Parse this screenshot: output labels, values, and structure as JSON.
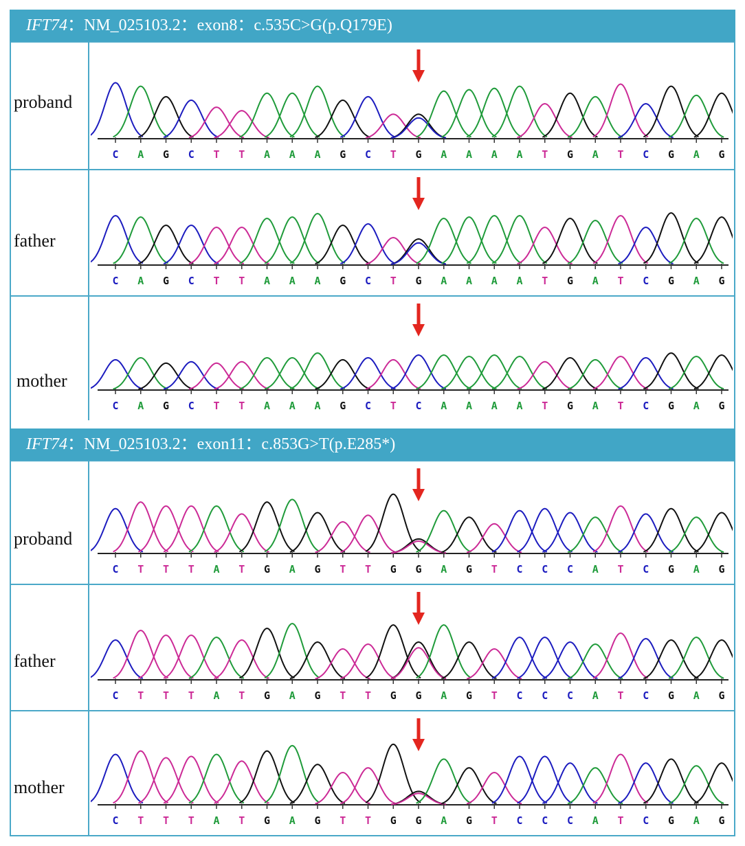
{
  "colors": {
    "A": "#1f9b3a",
    "C": "#1c1cbf",
    "G": "#111111",
    "T": "#cc2a96",
    "arrow": "#e3261f",
    "header": "#41a6c6",
    "border": "#4aa8c8"
  },
  "panels": [
    {
      "gene": "IFT74",
      "rest": "：NM_025103.2：exon8：c.535C>G(p.Q179E)",
      "rows": [
        {
          "label": "proband",
          "seq": [
            "C",
            "A",
            "G",
            "C",
            "T",
            "T",
            "A",
            "A",
            "A",
            "G",
            "C",
            "T",
            "G",
            "A",
            "A",
            "A",
            "A",
            "T",
            "G",
            "A",
            "T",
            "C",
            "G",
            "A",
            "G"
          ],
          "arrow_index": 12,
          "overlap": "C",
          "amp": [
            0.8,
            0.75,
            0.6,
            0.55,
            0.45,
            0.4,
            0.65,
            0.65,
            0.75,
            0.55,
            0.6,
            0.35,
            0.35,
            0.68,
            0.7,
            0.72,
            0.75,
            0.5,
            0.65,
            0.6,
            0.78,
            0.5,
            0.75,
            0.62,
            0.65
          ]
        },
        {
          "label": "father",
          "seq": [
            "C",
            "A",
            "G",
            "C",
            "T",
            "T",
            "A",
            "A",
            "A",
            "G",
            "C",
            "T",
            "G",
            "A",
            "A",
            "A",
            "A",
            "T",
            "G",
            "A",
            "T",
            "C",
            "G",
            "A",
            "G"
          ],
          "arrow_index": 12,
          "overlap": "C",
          "amp": [
            0.72,
            0.7,
            0.58,
            0.58,
            0.55,
            0.55,
            0.68,
            0.7,
            0.75,
            0.58,
            0.6,
            0.4,
            0.38,
            0.68,
            0.7,
            0.72,
            0.72,
            0.55,
            0.68,
            0.65,
            0.72,
            0.55,
            0.76,
            0.68,
            0.7
          ]
        },
        {
          "label": "mother",
          "seq": [
            "C",
            "A",
            "G",
            "C",
            "T",
            "T",
            "A",
            "A",
            "A",
            "G",
            "C",
            "T",
            "C",
            "A",
            "A",
            "A",
            "A",
            "T",
            "G",
            "A",
            "T",
            "C",
            "G",
            "A",
            "G"
          ],
          "arrow_index": 12,
          "overlap": "",
          "amp": [
            0.45,
            0.48,
            0.4,
            0.42,
            0.4,
            0.42,
            0.48,
            0.48,
            0.55,
            0.45,
            0.48,
            0.45,
            0.52,
            0.52,
            0.5,
            0.52,
            0.5,
            0.42,
            0.48,
            0.45,
            0.5,
            0.48,
            0.55,
            0.5,
            0.52
          ]
        }
      ]
    },
    {
      "gene": "IFT74",
      "rest": "：NM_025103.2：exon11：c.853G>T(p.E285*)",
      "rows": [
        {
          "label": "proband",
          "seq": [
            "C",
            "T",
            "T",
            "T",
            "A",
            "T",
            "G",
            "A",
            "G",
            "T",
            "T",
            "G",
            "G",
            "A",
            "G",
            "T",
            "C",
            "C",
            "C",
            "A",
            "T",
            "C",
            "G",
            "A",
            "G"
          ],
          "arrow_index": 12,
          "overlap": "T",
          "amp": [
            0.68,
            0.78,
            0.72,
            0.72,
            0.72,
            0.6,
            0.78,
            0.82,
            0.62,
            0.48,
            0.58,
            0.9,
            0.22,
            0.65,
            0.55,
            0.45,
            0.65,
            0.68,
            0.62,
            0.55,
            0.72,
            0.6,
            0.68,
            0.55,
            0.62
          ]
        },
        {
          "label": "father",
          "seq": [
            "C",
            "T",
            "T",
            "T",
            "A",
            "T",
            "G",
            "A",
            "G",
            "T",
            "T",
            "G",
            "G",
            "A",
            "G",
            "T",
            "C",
            "C",
            "C",
            "A",
            "T",
            "C",
            "G",
            "A",
            "G"
          ],
          "arrow_index": 12,
          "overlap": "T",
          "amp": [
            0.58,
            0.72,
            0.65,
            0.65,
            0.62,
            0.58,
            0.75,
            0.82,
            0.55,
            0.45,
            0.52,
            0.8,
            0.55,
            0.8,
            0.55,
            0.45,
            0.62,
            0.62,
            0.55,
            0.52,
            0.68,
            0.6,
            0.58,
            0.62,
            0.58
          ]
        },
        {
          "label": "mother",
          "seq": [
            "C",
            "T",
            "T",
            "T",
            "A",
            "T",
            "G",
            "A",
            "G",
            "T",
            "T",
            "G",
            "G",
            "A",
            "G",
            "T",
            "C",
            "C",
            "C",
            "A",
            "T",
            "C",
            "G",
            "A",
            "G"
          ],
          "arrow_index": 12,
          "overlap": "T",
          "amp": [
            0.75,
            0.8,
            0.7,
            0.72,
            0.75,
            0.65,
            0.8,
            0.88,
            0.6,
            0.48,
            0.55,
            0.9,
            0.2,
            0.68,
            0.55,
            0.48,
            0.72,
            0.72,
            0.62,
            0.55,
            0.75,
            0.62,
            0.68,
            0.58,
            0.62
          ]
        }
      ]
    }
  ]
}
